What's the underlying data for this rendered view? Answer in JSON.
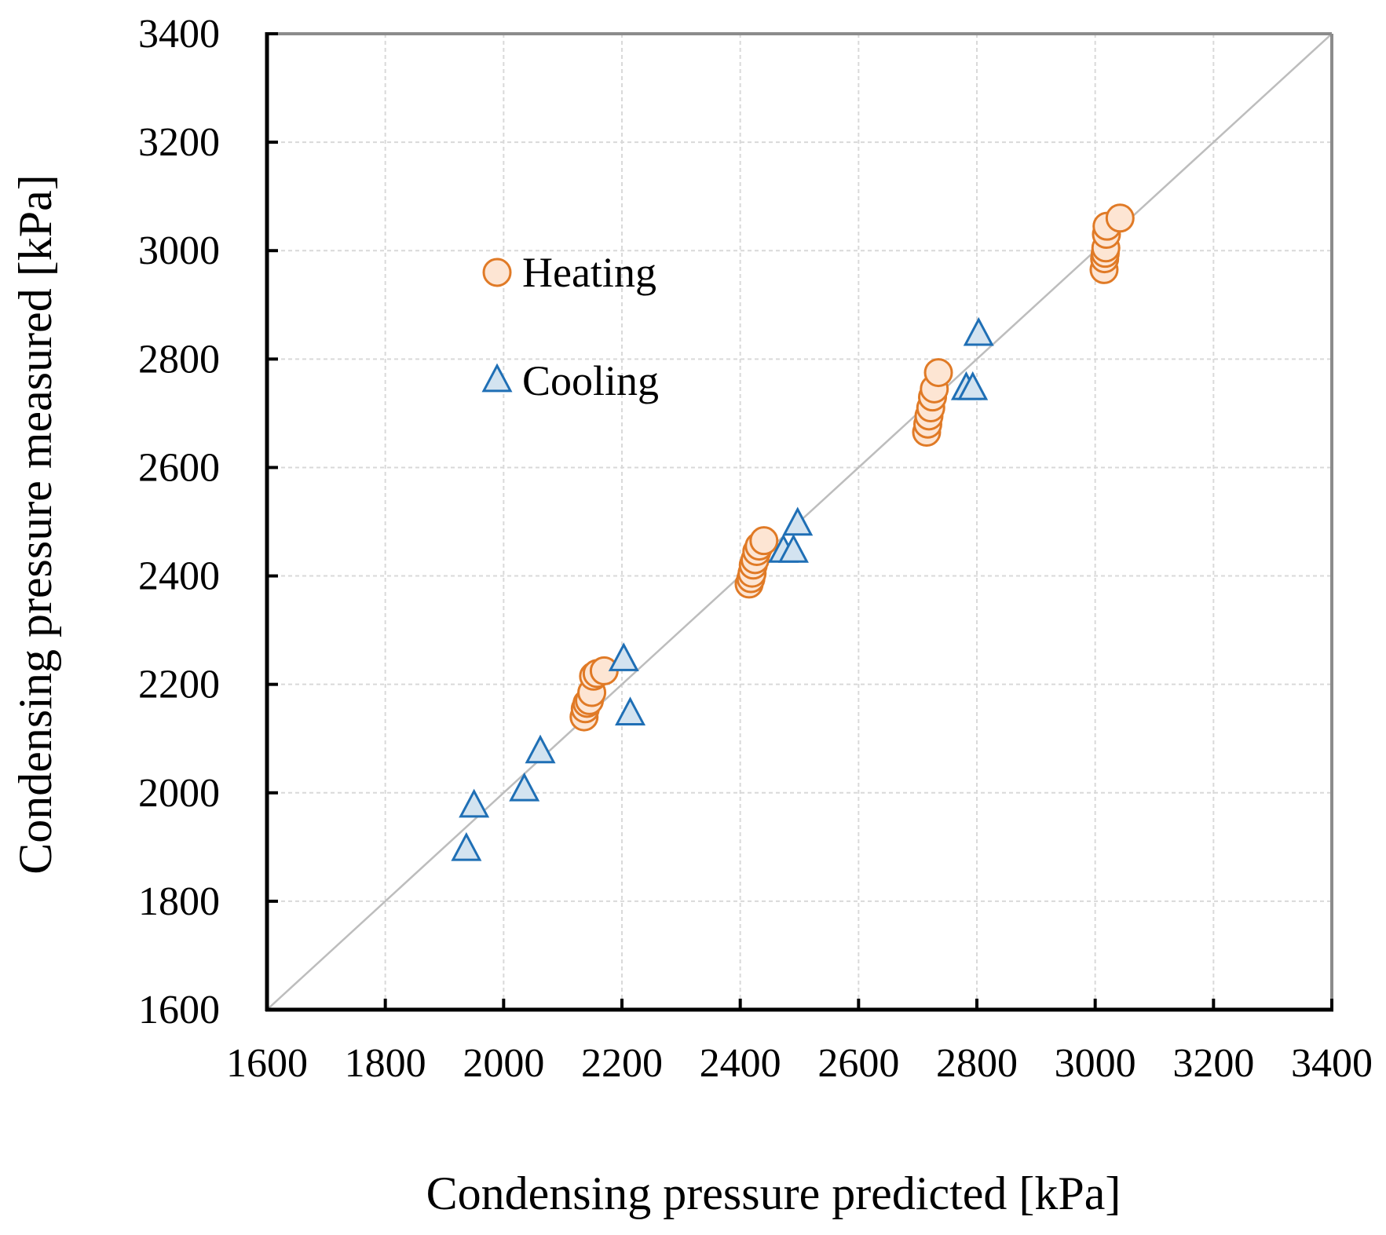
{
  "chart_data": {
    "type": "scatter",
    "xlabel": "Condensing pressure predicted [kPa]",
    "ylabel": "Condensing pressure measured [kPa]",
    "xlim": [
      1600,
      3400
    ],
    "ylim": [
      1600,
      3400
    ],
    "xticks": [
      "1600",
      "1800",
      "2000",
      "2200",
      "2400",
      "2600",
      "2800",
      "3000",
      "3200",
      "3400"
    ],
    "yticks": [
      "1600",
      "1800",
      "2000",
      "2200",
      "2400",
      "2600",
      "2800",
      "3000",
      "3200",
      "3400"
    ],
    "grid": true,
    "legend_position": "upper-left",
    "reference_line": "y = x",
    "series": [
      {
        "name": "Heating",
        "marker": "circle",
        "color": "#E07A26",
        "fill": "#FDE5D3",
        "x": [
          2136,
          2138,
          2141,
          2145,
          2149,
          2152,
          2158,
          2170,
          2415,
          2418,
          2420,
          2422,
          2425,
          2428,
          2432,
          2440,
          2715,
          2717,
          2719,
          2722,
          2725,
          2728,
          2735,
          3015,
          3016,
          3017,
          3018,
          3019,
          3020,
          3042
        ],
        "y": [
          2140,
          2155,
          2165,
          2170,
          2185,
          2215,
          2220,
          2225,
          2385,
          2395,
          2405,
          2420,
          2430,
          2445,
          2455,
          2465,
          2665,
          2680,
          2695,
          2710,
          2730,
          2745,
          2775,
          2965,
          2985,
          2995,
          3005,
          3030,
          3045,
          3060
        ]
      },
      {
        "name": "Cooling",
        "marker": "triangle",
        "color": "#1F6FB5",
        "fill": "#D3E3F0",
        "x": [
          1937,
          1950,
          2035,
          2062,
          2203,
          2214,
          2473,
          2490,
          2497,
          2782,
          2793,
          2803
        ],
        "y": [
          1895,
          1975,
          2005,
          2075,
          2245,
          2145,
          2445,
          2445,
          2495,
          2745,
          2745,
          2845
        ]
      }
    ]
  }
}
